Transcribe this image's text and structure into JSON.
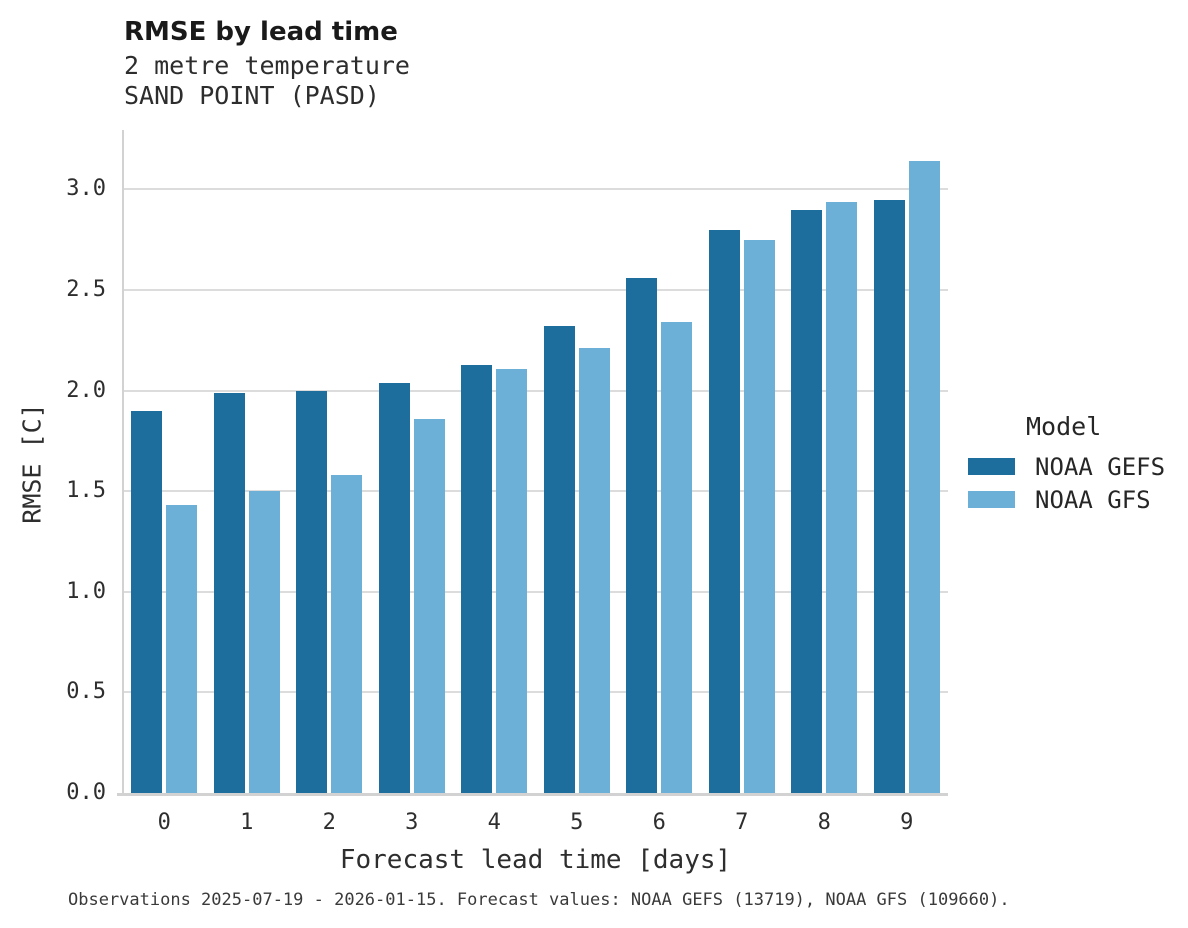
{
  "header": {
    "title": "RMSE by lead time",
    "subtitle_line1": "2 metre temperature",
    "subtitle_line2": "SAND POINT (PASD)"
  },
  "legend": {
    "title": "Model",
    "entries": [
      {
        "label": "NOAA GEFS",
        "color": "#1d6e9d"
      },
      {
        "label": "NOAA GFS",
        "color": "#6cb0d8"
      }
    ]
  },
  "footer": {
    "text": "Observations 2025-07-19 - 2026-01-15. Forecast values: NOAA GEFS (13719), NOAA GFS (109660)."
  },
  "chart_data": {
    "type": "bar",
    "title": "RMSE by lead time",
    "subtitle": [
      "2 metre temperature",
      "SAND POINT (PASD)"
    ],
    "categories": [
      "0",
      "1",
      "2",
      "3",
      "4",
      "5",
      "6",
      "7",
      "8",
      "9"
    ],
    "series": [
      {
        "name": "NOAA GEFS",
        "color": "#1d6e9d",
        "values": [
          1.9,
          1.99,
          2.0,
          2.04,
          2.13,
          2.32,
          2.56,
          2.8,
          2.9,
          2.95
        ]
      },
      {
        "name": "NOAA GFS",
        "color": "#6cb0d8",
        "values": [
          1.43,
          1.5,
          1.58,
          1.86,
          2.11,
          2.21,
          2.34,
          2.75,
          2.94,
          3.14
        ]
      }
    ],
    "xlabel": "Forecast lead time [days]",
    "ylabel": "RMSE [C]",
    "ylim": [
      0,
      3.3
    ],
    "yticks": [
      0.0,
      0.5,
      1.0,
      1.5,
      2.0,
      2.5,
      3.0
    ],
    "grid": true,
    "legend_title": "Model",
    "legend_position": "center right",
    "annotation": "Observations 2025-07-19 - 2026-01-15. Forecast values: NOAA GEFS (13719), NOAA GFS (109660)."
  }
}
